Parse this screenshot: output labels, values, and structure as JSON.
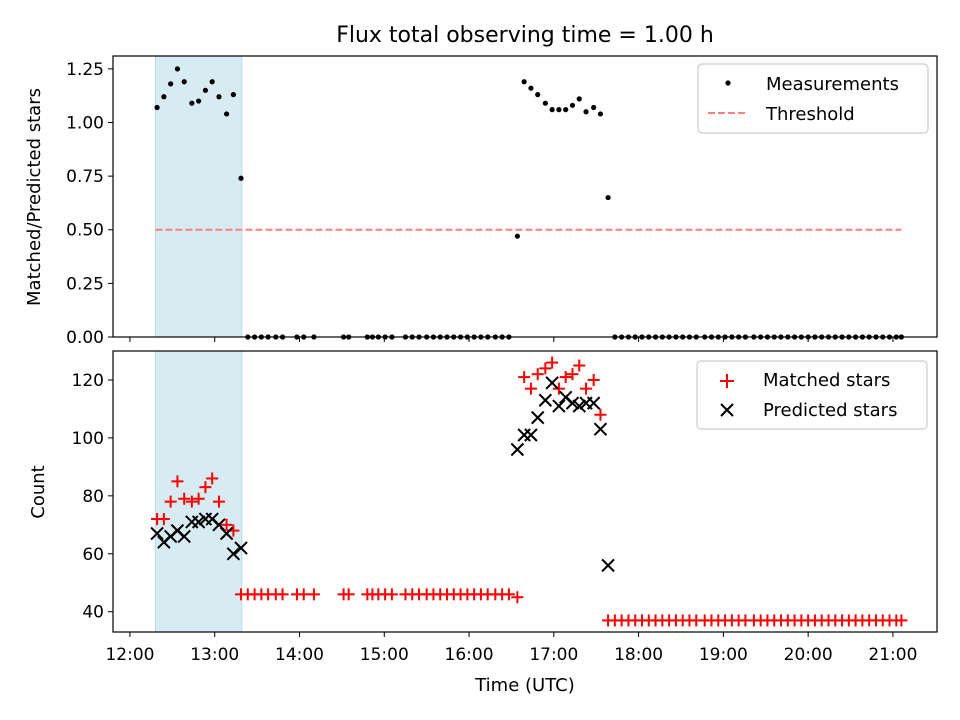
{
  "chart_data": {
    "title": "Flux total observing time = 1.00 h",
    "xlabel": "Time (UTC)",
    "x_ticks": [
      "12:00",
      "13:00",
      "14:00",
      "15:00",
      "16:00",
      "17:00",
      "18:00",
      "19:00",
      "20:00",
      "21:00"
    ],
    "x_unit": "hours UTC",
    "xlim": [
      11.8,
      21.52
    ],
    "shaded_span": [
      12.3,
      13.32
    ],
    "panels": [
      {
        "type": "scatter",
        "ylabel": "Matched/Predicted stars",
        "ylim": [
          0,
          1.31
        ],
        "y_ticks": [
          "0.00",
          "0.25",
          "0.50",
          "0.75",
          "1.00",
          "1.25"
        ],
        "legend": {
          "position": "top-right",
          "entries": [
            "Measurements",
            "Threshold"
          ]
        },
        "threshold": {
          "name": "Threshold",
          "value": 0.5,
          "x_range": [
            12.3,
            21.1
          ],
          "color": "#ff7f7f"
        },
        "series": [
          {
            "name": "Measurements",
            "marker": "dot",
            "points": [
              [
                12.32,
                1.07
              ],
              [
                12.4,
                1.12
              ],
              [
                12.48,
                1.18
              ],
              [
                12.56,
                1.25
              ],
              [
                12.64,
                1.19
              ],
              [
                12.73,
                1.09
              ],
              [
                12.81,
                1.1
              ],
              [
                12.89,
                1.15
              ],
              [
                12.97,
                1.19
              ],
              [
                13.05,
                1.12
              ],
              [
                13.14,
                1.04
              ],
              [
                13.22,
                1.13
              ],
              [
                13.31,
                0.74
              ],
              [
                13.39,
                0
              ],
              [
                13.47,
                0
              ],
              [
                13.55,
                0
              ],
              [
                13.63,
                0
              ],
              [
                13.72,
                0
              ],
              [
                13.8,
                0
              ],
              [
                13.97,
                0
              ],
              [
                14.05,
                0
              ],
              [
                14.17,
                0
              ],
              [
                14.52,
                0
              ],
              [
                14.58,
                0
              ],
              [
                14.8,
                0
              ],
              [
                14.86,
                0
              ],
              [
                14.93,
                0
              ],
              [
                15.01,
                0
              ],
              [
                15.09,
                0
              ],
              [
                15.25,
                0
              ],
              [
                15.33,
                0
              ],
              [
                15.41,
                0
              ],
              [
                15.5,
                0
              ],
              [
                15.58,
                0
              ],
              [
                15.66,
                0
              ],
              [
                15.74,
                0
              ],
              [
                15.82,
                0
              ],
              [
                15.9,
                0
              ],
              [
                15.98,
                0
              ],
              [
                16.06,
                0
              ],
              [
                16.14,
                0
              ],
              [
                16.22,
                0
              ],
              [
                16.31,
                0
              ],
              [
                16.39,
                0
              ],
              [
                16.47,
                0
              ],
              [
                16.57,
                0.47
              ],
              [
                16.65,
                1.19
              ],
              [
                16.73,
                1.16
              ],
              [
                16.81,
                1.13
              ],
              [
                16.9,
                1.09
              ],
              [
                16.98,
                1.06
              ],
              [
                17.06,
                1.06
              ],
              [
                17.14,
                1.06
              ],
              [
                17.22,
                1.08
              ],
              [
                17.3,
                1.11
              ],
              [
                17.38,
                1.05
              ],
              [
                17.47,
                1.07
              ],
              [
                17.55,
                1.04
              ],
              [
                17.64,
                0.65
              ],
              [
                17.72,
                0
              ],
              [
                17.8,
                0
              ],
              [
                17.88,
                0
              ],
              [
                17.96,
                0
              ],
              [
                18.04,
                0
              ],
              [
                18.12,
                0
              ],
              [
                18.2,
                0
              ],
              [
                18.28,
                0
              ],
              [
                18.36,
                0
              ],
              [
                18.44,
                0
              ],
              [
                18.52,
                0
              ],
              [
                18.6,
                0
              ],
              [
                18.68,
                0
              ],
              [
                18.78,
                0
              ],
              [
                18.86,
                0
              ],
              [
                18.94,
                0
              ],
              [
                19.02,
                0
              ],
              [
                19.1,
                0
              ],
              [
                19.18,
                0
              ],
              [
                19.26,
                0
              ],
              [
                19.36,
                0
              ],
              [
                19.44,
                0
              ],
              [
                19.52,
                0
              ],
              [
                19.6,
                0
              ],
              [
                19.68,
                0
              ],
              [
                19.76,
                0
              ],
              [
                19.84,
                0
              ],
              [
                19.92,
                0
              ],
              [
                20.0,
                0
              ],
              [
                20.08,
                0
              ],
              [
                20.16,
                0
              ],
              [
                20.24,
                0
              ],
              [
                20.32,
                0
              ],
              [
                20.4,
                0
              ],
              [
                20.48,
                0
              ],
              [
                20.56,
                0
              ],
              [
                20.64,
                0
              ],
              [
                20.72,
                0
              ],
              [
                20.8,
                0
              ],
              [
                20.88,
                0
              ],
              [
                20.96,
                0
              ],
              [
                21.04,
                0
              ],
              [
                21.1,
                0
              ]
            ]
          }
        ]
      },
      {
        "type": "scatter",
        "ylabel": "Count",
        "ylim": [
          33,
          130
        ],
        "y_ticks": [
          "40",
          "60",
          "80",
          "100",
          "120"
        ],
        "legend": {
          "position": "top-right",
          "entries": [
            "Matched stars",
            "Predicted stars"
          ]
        },
        "series": [
          {
            "name": "Matched stars",
            "marker": "plus",
            "color": "#ff0000",
            "points": [
              [
                12.32,
                72
              ],
              [
                12.4,
                72
              ],
              [
                12.48,
                78
              ],
              [
                12.56,
                85
              ],
              [
                12.64,
                79
              ],
              [
                12.73,
                78
              ],
              [
                12.81,
                79
              ],
              [
                12.89,
                83
              ],
              [
                12.97,
                86
              ],
              [
                13.05,
                78
              ],
              [
                13.14,
                70
              ],
              [
                13.22,
                68
              ],
              [
                13.31,
                46
              ],
              [
                13.39,
                46
              ],
              [
                13.47,
                46
              ],
              [
                13.55,
                46
              ],
              [
                13.63,
                46
              ],
              [
                13.72,
                46
              ],
              [
                13.8,
                46
              ],
              [
                13.97,
                46
              ],
              [
                14.05,
                46
              ],
              [
                14.17,
                46
              ],
              [
                14.52,
                46
              ],
              [
                14.58,
                46
              ],
              [
                14.8,
                46
              ],
              [
                14.86,
                46
              ],
              [
                14.93,
                46
              ],
              [
                15.01,
                46
              ],
              [
                15.09,
                46
              ],
              [
                15.25,
                46
              ],
              [
                15.33,
                46
              ],
              [
                15.41,
                46
              ],
              [
                15.5,
                46
              ],
              [
                15.58,
                46
              ],
              [
                15.66,
                46
              ],
              [
                15.74,
                46
              ],
              [
                15.82,
                46
              ],
              [
                15.9,
                46
              ],
              [
                15.98,
                46
              ],
              [
                16.06,
                46
              ],
              [
                16.14,
                46
              ],
              [
                16.22,
                46
              ],
              [
                16.31,
                46
              ],
              [
                16.39,
                46
              ],
              [
                16.47,
                46
              ],
              [
                16.57,
                45
              ],
              [
                16.65,
                121
              ],
              [
                16.73,
                117
              ],
              [
                16.81,
                122
              ],
              [
                16.9,
                124
              ],
              [
                16.98,
                126
              ],
              [
                17.06,
                117
              ],
              [
                17.14,
                121
              ],
              [
                17.22,
                122
              ],
              [
                17.3,
                125
              ],
              [
                17.38,
                117
              ],
              [
                17.47,
                120
              ],
              [
                17.55,
                108
              ],
              [
                17.64,
                37
              ],
              [
                17.72,
                37
              ],
              [
                17.8,
                37
              ],
              [
                17.88,
                37
              ],
              [
                17.96,
                37
              ],
              [
                18.04,
                37
              ],
              [
                18.12,
                37
              ],
              [
                18.2,
                37
              ],
              [
                18.28,
                37
              ],
              [
                18.36,
                37
              ],
              [
                18.44,
                37
              ],
              [
                18.52,
                37
              ],
              [
                18.6,
                37
              ],
              [
                18.68,
                37
              ],
              [
                18.78,
                37
              ],
              [
                18.86,
                37
              ],
              [
                18.94,
                37
              ],
              [
                19.02,
                37
              ],
              [
                19.1,
                37
              ],
              [
                19.18,
                37
              ],
              [
                19.26,
                37
              ],
              [
                19.36,
                37
              ],
              [
                19.44,
                37
              ],
              [
                19.52,
                37
              ],
              [
                19.6,
                37
              ],
              [
                19.68,
                37
              ],
              [
                19.76,
                37
              ],
              [
                19.84,
                37
              ],
              [
                19.92,
                37
              ],
              [
                20.0,
                37
              ],
              [
                20.08,
                37
              ],
              [
                20.16,
                37
              ],
              [
                20.24,
                37
              ],
              [
                20.32,
                37
              ],
              [
                20.4,
                37
              ],
              [
                20.48,
                37
              ],
              [
                20.56,
                37
              ],
              [
                20.64,
                37
              ],
              [
                20.72,
                37
              ],
              [
                20.8,
                37
              ],
              [
                20.88,
                37
              ],
              [
                20.96,
                37
              ],
              [
                21.04,
                37
              ],
              [
                21.1,
                37
              ]
            ]
          },
          {
            "name": "Predicted stars",
            "marker": "x",
            "color": "#000000",
            "points": [
              [
                12.32,
                67
              ],
              [
                12.4,
                64
              ],
              [
                12.48,
                66
              ],
              [
                12.56,
                68
              ],
              [
                12.64,
                66
              ],
              [
                12.73,
                71
              ],
              [
                12.81,
                71
              ],
              [
                12.89,
                72
              ],
              [
                12.97,
                72
              ],
              [
                13.05,
                70
              ],
              [
                13.14,
                67
              ],
              [
                13.22,
                60
              ],
              [
                13.31,
                62
              ],
              [
                16.57,
                96
              ],
              [
                16.65,
                101
              ],
              [
                16.73,
                101
              ],
              [
                16.81,
                107
              ],
              [
                16.9,
                113
              ],
              [
                16.98,
                119
              ],
              [
                17.06,
                111
              ],
              [
                17.14,
                114
              ],
              [
                17.22,
                112
              ],
              [
                17.3,
                111
              ],
              [
                17.38,
                112
              ],
              [
                17.47,
                112
              ],
              [
                17.55,
                103
              ],
              [
                17.64,
                56
              ]
            ]
          }
        ]
      }
    ]
  }
}
